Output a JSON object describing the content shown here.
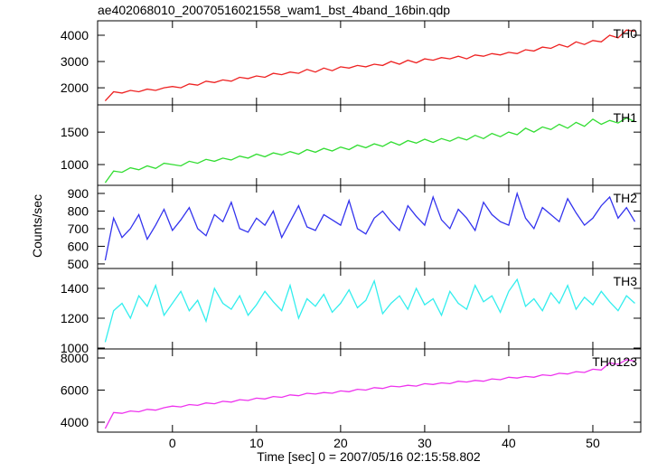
{
  "chart_data": {
    "type": "line",
    "title": "ae402068010_20070516021558_wam1_bst_4band_16bin.qdp",
    "x_label": "Time [sec] 0 = 2007/05/16 02:15:58.802",
    "y_label": "Counts/sec",
    "x": [
      -8,
      -7,
      -6,
      -5,
      -4,
      -3,
      -2,
      -1,
      0,
      1,
      2,
      3,
      4,
      5,
      6,
      7,
      8,
      9,
      10,
      11,
      12,
      13,
      14,
      15,
      16,
      17,
      18,
      19,
      20,
      21,
      22,
      23,
      24,
      25,
      26,
      27,
      28,
      29,
      30,
      31,
      32,
      33,
      34,
      35,
      36,
      37,
      38,
      39,
      40,
      41,
      42,
      43,
      44,
      45,
      46,
      47,
      48,
      49,
      50,
      51,
      52,
      53,
      54,
      55
    ],
    "xlim": [
      -8.9,
      55.7
    ],
    "xticks": [
      0,
      10,
      20,
      30,
      40,
      50
    ],
    "series": [
      {
        "name": "TH0",
        "color": "#ee2222",
        "ylim": [
          1350,
          4550
        ],
        "yticks": [
          2000,
          3000,
          4000
        ],
        "values": [
          1500,
          1850,
          1800,
          1900,
          1850,
          1950,
          1900,
          2000,
          2050,
          2000,
          2150,
          2100,
          2250,
          2200,
          2300,
          2250,
          2400,
          2350,
          2450,
          2400,
          2550,
          2500,
          2600,
          2550,
          2700,
          2600,
          2750,
          2650,
          2800,
          2750,
          2850,
          2800,
          2900,
          2850,
          3000,
          2900,
          3050,
          2950,
          3100,
          3050,
          3150,
          3100,
          3200,
          3100,
          3250,
          3200,
          3300,
          3250,
          3350,
          3300,
          3450,
          3400,
          3550,
          3500,
          3650,
          3550,
          3750,
          3650,
          3800,
          3750,
          4000,
          3900,
          4200,
          4150
        ]
      },
      {
        "name": "TH1",
        "color": "#33dd33",
        "ylim": [
          680,
          1920
        ],
        "yticks": [
          1000,
          1500
        ],
        "values": [
          720,
          900,
          880,
          950,
          920,
          980,
          940,
          1020,
          1000,
          980,
          1050,
          1020,
          1080,
          1050,
          1100,
          1070,
          1130,
          1100,
          1160,
          1120,
          1180,
          1150,
          1200,
          1160,
          1230,
          1190,
          1250,
          1210,
          1270,
          1230,
          1300,
          1260,
          1320,
          1280,
          1350,
          1300,
          1370,
          1330,
          1390,
          1340,
          1400,
          1360,
          1420,
          1380,
          1450,
          1400,
          1480,
          1430,
          1500,
          1460,
          1560,
          1500,
          1580,
          1540,
          1620,
          1560,
          1650,
          1590,
          1700,
          1620,
          1680,
          1640,
          1720,
          1660
        ]
      },
      {
        "name": "TH2",
        "color": "#3333ee",
        "ylim": [
          474,
          946
        ],
        "yticks": [
          500,
          600,
          700,
          800,
          900
        ],
        "values": [
          520,
          760,
          650,
          700,
          780,
          640,
          720,
          810,
          690,
          750,
          820,
          700,
          660,
          780,
          740,
          850,
          700,
          680,
          760,
          720,
          800,
          650,
          740,
          830,
          710,
          690,
          780,
          750,
          720,
          860,
          700,
          670,
          760,
          800,
          740,
          690,
          830,
          770,
          720,
          880,
          750,
          700,
          810,
          760,
          690,
          850,
          780,
          740,
          720,
          900,
          760,
          700,
          820,
          780,
          740,
          870,
          790,
          720,
          760,
          830,
          880,
          760,
          820,
          740
        ]
      },
      {
        "name": "TH3",
        "color": "#33eeee",
        "ylim": [
          994,
          1533
        ],
        "yticks": [
          1000,
          1200,
          1400
        ],
        "values": [
          1040,
          1250,
          1300,
          1200,
          1350,
          1280,
          1420,
          1220,
          1300,
          1380,
          1250,
          1320,
          1180,
          1400,
          1300,
          1260,
          1350,
          1220,
          1290,
          1380,
          1310,
          1250,
          1420,
          1200,
          1330,
          1280,
          1360,
          1240,
          1300,
          1390,
          1270,
          1320,
          1450,
          1230,
          1300,
          1350,
          1260,
          1400,
          1290,
          1330,
          1220,
          1380,
          1300,
          1260,
          1420,
          1310,
          1350,
          1240,
          1380,
          1460,
          1280,
          1330,
          1250,
          1370,
          1300,
          1420,
          1260,
          1340,
          1290,
          1380,
          1310,
          1250,
          1350,
          1300
        ]
      },
      {
        "name": "TH0123",
        "color": "#ee33ee",
        "ylim": [
          3380,
          8563
        ],
        "yticks": [
          4000,
          6000,
          8000
        ],
        "values": [
          3600,
          4600,
          4550,
          4700,
          4650,
          4800,
          4750,
          4900,
          5000,
          4950,
          5100,
          5050,
          5200,
          5150,
          5300,
          5250,
          5400,
          5350,
          5500,
          5450,
          5600,
          5550,
          5700,
          5650,
          5800,
          5750,
          5850,
          5800,
          5950,
          5900,
          6050,
          6000,
          6150,
          6100,
          6250,
          6200,
          6300,
          6250,
          6400,
          6350,
          6450,
          6400,
          6550,
          6500,
          6600,
          6550,
          6700,
          6650,
          6800,
          6750,
          6850,
          6800,
          6950,
          6900,
          7050,
          7000,
          7150,
          7100,
          7300,
          7250,
          7700,
          7600,
          7900,
          7800
        ]
      }
    ]
  }
}
